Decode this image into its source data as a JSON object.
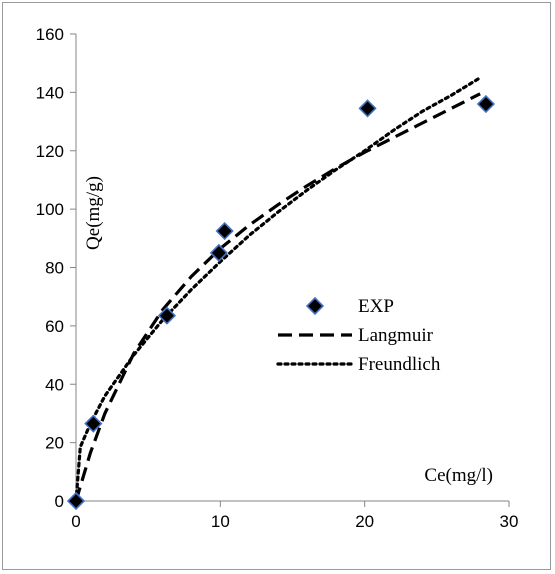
{
  "chart_data": {
    "type": "scatter",
    "title": "",
    "xlabel": "Ce(mg/l)",
    "ylabel": "Qe(mg/g)",
    "xlim": [
      0,
      30
    ],
    "ylim": [
      0,
      160
    ],
    "xticks": [
      0,
      10,
      20,
      30
    ],
    "yticks": [
      0,
      20,
      40,
      60,
      80,
      100,
      120,
      140,
      160
    ],
    "grid": false,
    "legend_position": "middle-right",
    "series": [
      {
        "name": "EXP",
        "kind": "markers",
        "marker": "diamond",
        "color": "#000000",
        "edge_color": "#4472c4",
        "x": [
          0,
          1.2,
          6.3,
          9.9,
          10.3,
          20.2,
          28.4
        ],
        "y": [
          0,
          26.5,
          63.5,
          85,
          92.5,
          134.5,
          136
        ]
      },
      {
        "name": "Langmuir",
        "kind": "line",
        "dash": "dashed",
        "color": "#000000",
        "x": [
          0,
          1,
          2,
          4,
          6,
          8,
          10,
          12,
          14,
          16,
          18,
          20,
          22,
          24,
          26,
          28
        ],
        "y": [
          0,
          16.5,
          30,
          50.5,
          65.5,
          77,
          86.5,
          94.5,
          101.5,
          108,
          114,
          119.5,
          124.5,
          129.5,
          134.5,
          139.5
        ]
      },
      {
        "name": "Freundlich",
        "kind": "line",
        "dash": "dotted",
        "color": "#000000",
        "x": [
          0,
          0.3,
          1,
          2,
          4,
          6,
          8,
          10,
          12,
          14,
          16,
          18,
          20,
          22,
          24,
          26,
          28
        ],
        "y": [
          0,
          18.5,
          26.5,
          36,
          50,
          62,
          72.5,
          82,
          91,
          99,
          106.5,
          113.5,
          120,
          127,
          133.5,
          139,
          145
        ]
      }
    ]
  }
}
